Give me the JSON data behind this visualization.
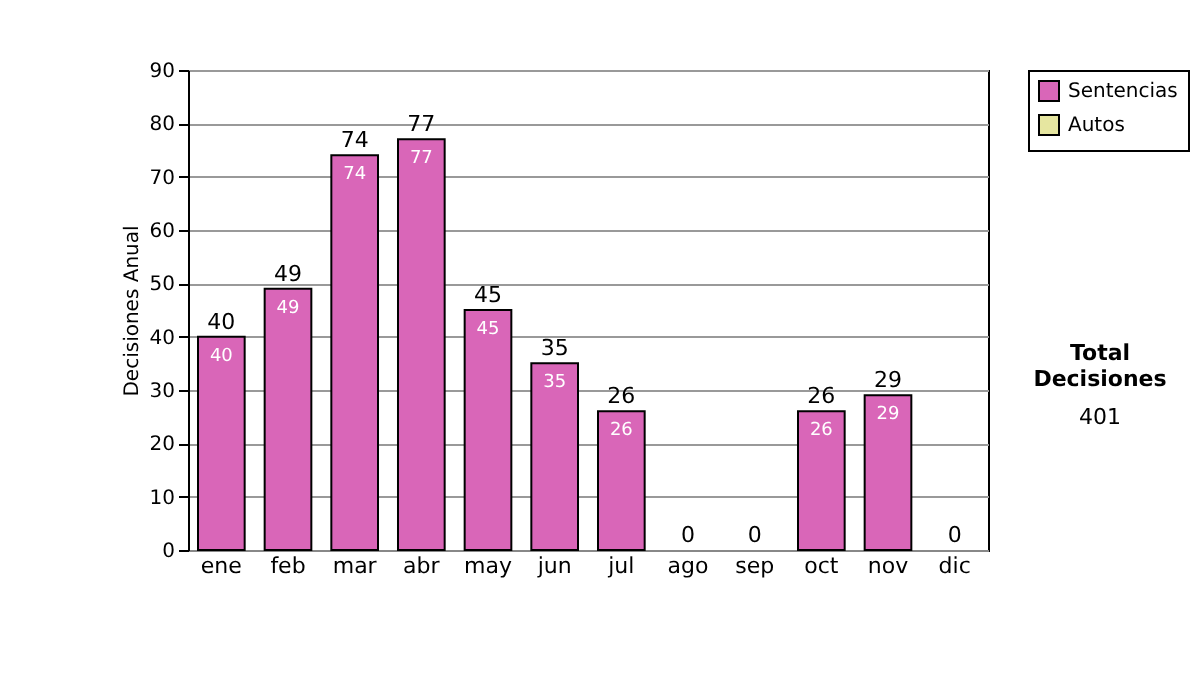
{
  "chart_data": {
    "type": "bar",
    "ylabel": "Decisiones Anual",
    "categories": [
      "ene",
      "feb",
      "mar",
      "abr",
      "may",
      "jun",
      "jul",
      "ago",
      "sep",
      "oct",
      "nov",
      "dic"
    ],
    "series": [
      {
        "name": "Sentencias",
        "color": "#d966b8",
        "values": [
          40,
          49,
          74,
          77,
          45,
          35,
          26,
          0,
          0,
          26,
          29,
          0
        ],
        "value_labels": [
          "40",
          "49",
          "74",
          "77",
          "45",
          "35",
          "26",
          null,
          null,
          "26",
          "29",
          null
        ]
      },
      {
        "name": "Autos",
        "color": "#e6e6a0",
        "values": [
          0,
          0,
          0,
          0,
          0,
          0,
          0,
          0,
          0,
          0,
          0,
          0
        ]
      }
    ],
    "totals": [
      "40",
      "49",
      "74",
      "77",
      "45",
      "35",
      "26",
      "0",
      "0",
      "26",
      "29",
      "0"
    ],
    "ylim": [
      0,
      90
    ],
    "yticks": [
      0,
      10,
      20,
      30,
      40,
      50,
      60,
      70,
      80,
      90
    ],
    "grid": "y",
    "legend": "top right",
    "annotations": [
      "Total Decisiones",
      "401"
    ]
  }
}
